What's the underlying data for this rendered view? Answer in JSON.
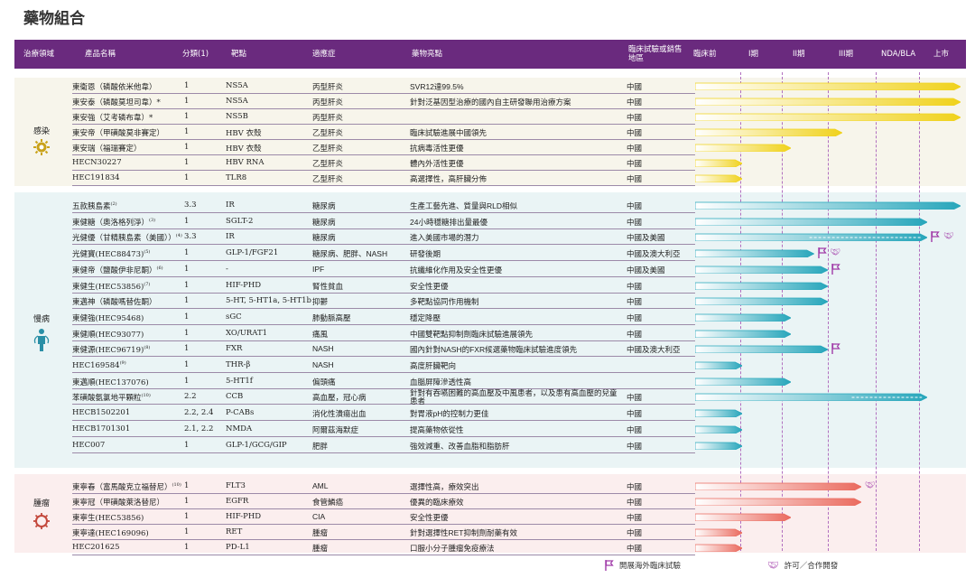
{
  "page_title": "藥物組合",
  "header": {
    "area": "治療領域",
    "product": "產品名稱",
    "category": "分類(1)",
    "target": "靶點",
    "indication": "適應症",
    "highlights": "藥物亮點",
    "region": "臨床試驗或銷售地區",
    "stages": [
      "臨床前",
      "I期",
      "II期",
      "III期",
      "NDA/BLA",
      "上市"
    ]
  },
  "colors": {
    "header_bg": "#6a2a7e",
    "infect_bar": "#f0d21c",
    "chronic_bar": "#27a6bb",
    "onco_bar": "#ea6a5e",
    "accent": "#a03aa8"
  },
  "areas": [
    {
      "name": "感染",
      "icon": "virus-icon"
    },
    {
      "name": "慢病",
      "icon": "body-icon"
    },
    {
      "name": "腫瘤",
      "icon": "tumor-icon"
    }
  ],
  "groups": [
    {
      "area": "infect",
      "rows": [
        {
          "product": "東衛恩（磷酸依米他韋）",
          "category": "1",
          "target": "NS5A",
          "indication": "丙型肝炎",
          "highlight": "SVR12達99.5%",
          "region": "中國",
          "progress": 6,
          "dashed": 0
        },
        {
          "product": "東安泰（磷酸莫坦司韋）*",
          "category": "1",
          "target": "NS5A",
          "indication": "丙型肝炎",
          "highlight": "針對泛基因型治療的國內自主研發聯用治療方案",
          "region": "中國",
          "progress": 6,
          "dashed": 0
        },
        {
          "product": "東安強（艾考磷布韋）*",
          "category": "1",
          "target": "NS5B",
          "indication": "丙型肝炎",
          "highlight": "",
          "region": "中國",
          "progress": 6,
          "dashed": 0
        },
        {
          "product": "東安帝（甲磺酸莫非賽定）",
          "category": "1",
          "target": "HBV 衣殼",
          "indication": "乙型肝炎",
          "highlight": "臨床試驗進展中國領先",
          "region": "中國",
          "progress": 3.3,
          "dashed": 0
        },
        {
          "product": "東安瑞（福瑞賽定）",
          "category": "1",
          "target": "HBV 衣殼",
          "indication": "乙型肝炎",
          "highlight": "抗病毒活性更優",
          "region": "中國",
          "progress": 2.2,
          "dashed": 0
        },
        {
          "product": "HECN30227",
          "category": "1",
          "target": "HBV RNA",
          "indication": "乙型肝炎",
          "highlight": "體內外活性更優",
          "region": "中國",
          "progress": 1.05,
          "dashed": 0
        },
        {
          "product": "HEC191834",
          "category": "1",
          "target": "TLR8",
          "indication": "乙型肝炎",
          "highlight": "高選擇性，高肝臟分佈",
          "region": "中國",
          "progress": 1.05,
          "dashed": 0
        }
      ]
    },
    {
      "area": "chronic",
      "rows": [
        {
          "product": "五款胰島素",
          "sup": "(2)",
          "category": "3.3",
          "target": "IR",
          "indication": "糖尿病",
          "highlight": "生產工藝先進、質量與RLD相似",
          "region": "中國",
          "progress": 6,
          "dashed": 0
        },
        {
          "product": "東健糖（奧洛格列淨）",
          "sup": "(3)",
          "category": "1",
          "target": "SGLT-2",
          "indication": "糖尿病",
          "highlight": "24小時穩糖排出量最優",
          "region": "中國",
          "progress": 5.2,
          "dashed": 0
        },
        {
          "product": "光健優（甘精胰島素（美國））",
          "sup": "(4)",
          "category": "3.3",
          "target": "IR",
          "indication": "糖尿病",
          "highlight": "進入美國市場的潛力",
          "region": "中國及美國",
          "progress": 5.2,
          "dashed": 2.6
        },
        {
          "product": "光健寶(HEC88473)",
          "sup": "(5)",
          "category": "1",
          "target": "GLP-1/FGF21",
          "indication": "糖尿病、肥胖、NASH",
          "highlight": "研發後期",
          "region": "中國及澳大利亞",
          "progress": 2.7,
          "dashed": 0
        },
        {
          "product": "東健帝（鹽酸伊非尼酮）",
          "sup": "(6)",
          "category": "1",
          "target": "-",
          "indication": "IPF",
          "highlight": "抗纖維化作用及安全性更優",
          "region": "中國及美國",
          "progress": 3.0,
          "dashed": 0
        },
        {
          "product": "東健生(HEC53856)",
          "sup": "(7)",
          "category": "1",
          "target": "HIF-PHD",
          "indication": "腎性貧血",
          "highlight": "安全性更優",
          "region": "中國",
          "progress": 3.0,
          "dashed": 0
        },
        {
          "product": "東邁神（磷酸嗎替佐酮）",
          "category": "1",
          "target": "5-HT, 5-HT1a, 5-HT1b",
          "indication": "抑鬱",
          "highlight": "多靶點協同作用機制",
          "region": "中國",
          "progress": 3.0,
          "dashed": 0
        },
        {
          "product": "東健強(HEC95468)",
          "category": "1",
          "target": "sGC",
          "indication": "肺動脈高壓",
          "highlight": "穩定降壓",
          "region": "中國",
          "progress": 2.2,
          "dashed": 0
        },
        {
          "product": "東健順(HEC93077)",
          "category": "1",
          "target": "XO/URAT1",
          "indication": "痛風",
          "highlight": "中國雙靶點抑制劑臨床試驗進展領先",
          "region": "中國",
          "progress": 2.2,
          "dashed": 0
        },
        {
          "product": "東健源(HEC96719)",
          "sup": "(8)",
          "category": "1",
          "target": "FXR",
          "indication": "NASH",
          "highlight": "國內針對NASH的FXR候選藥物臨床試驗進度領先",
          "region": "中國及澳大利亞",
          "progress": 3.0,
          "dashed": 0
        },
        {
          "product": "HEC169584",
          "sup": "(9)",
          "category": "1",
          "target": "THR-β",
          "indication": "NASH",
          "highlight": "高度肝臟靶向",
          "region": "",
          "progress": 1.05,
          "dashed": 0
        },
        {
          "product": "東邁順(HEC137076)",
          "category": "1",
          "target": "5-HT1f",
          "indication": "偏頭痛",
          "highlight": "血腦屏障滲透性高",
          "region": "",
          "progress": 2.2,
          "dashed": 0
        },
        {
          "product": "苯磺酸氨氯地平顆粒",
          "sup": "(10)",
          "category": "2.2",
          "target": "CCB",
          "indication": "高血壓，冠心病",
          "highlight": "針對有吞嚥困難的高血壓及中風患者，以及患有高血壓的兒童患者",
          "region": "中國",
          "progress": 5.2,
          "dashed": 3.5
        },
        {
          "product": "HECB1502201",
          "category": "2.2, 2.4",
          "target": "P-CABs",
          "indication": "消化性潰瘍出血",
          "highlight": "對胃液pH的控制力更佳",
          "region": "中國",
          "progress": 1.05,
          "dashed": 0
        },
        {
          "product": "HECB1701301",
          "category": "2.1, 2.2",
          "target": "NMDA",
          "indication": "阿爾茲海默症",
          "highlight": "提高藥物依從性",
          "region": "中國",
          "progress": 1.05,
          "dashed": 0
        },
        {
          "product": "HEC007",
          "category": "1",
          "target": "GLP-1/GCG/GIP",
          "indication": "肥胖",
          "highlight": "強效減重、改善血脂和脂肪肝",
          "region": "中國",
          "progress": 1.05,
          "dashed": 0
        }
      ]
    },
    {
      "area": "onco",
      "rows": [
        {
          "product": "東寧春（富馬酸克立福替尼）",
          "sup": "(10)",
          "category": "1",
          "target": "FLT3",
          "indication": "AML",
          "highlight": "選擇性高，療效突出",
          "region": "中國",
          "progress": 3.7,
          "dashed": 0
        },
        {
          "product": "東寧冠（甲磺酸萊洛替尼）",
          "category": "1",
          "target": "EGFR",
          "indication": "食管鱗癌",
          "highlight": "優異的臨床療效",
          "region": "中國",
          "progress": 3.7,
          "dashed": 0
        },
        {
          "product": "東寧生(HEC53856)",
          "category": "1",
          "target": "HIF-PHD",
          "indication": "CIA",
          "highlight": "安全性更優",
          "region": "中國",
          "progress": 2.2,
          "dashed": 0
        },
        {
          "product": "東寧達(HEC169096)",
          "category": "1",
          "target": "RET",
          "indication": "腫瘤",
          "highlight": "針對選擇性RET抑制劑耐藥有效",
          "region": "中國",
          "progress": 1.05,
          "dashed": 0
        },
        {
          "product": "HEC201625",
          "category": "1",
          "target": "PD-L1",
          "indication": "腫瘤",
          "highlight": "口服小分子腫瘤免疫療法",
          "region": "中國",
          "progress": 1.05,
          "dashed": 0
        }
      ]
    }
  ],
  "marks": {
    "flags": [
      "光健優（甘精胰島素（美國））",
      "光健寶(HEC88473)",
      "東健帝（鹽酸伊非尼酮）",
      "東健源(HEC96719)"
    ],
    "handshakes": [
      "光健優（甘精胰島素（美國））",
      "光健寶(HEC88473)",
      "東寧春（富馬酸克立福替尼）"
    ]
  },
  "legend": {
    "flag_label": "開展海外臨床試驗",
    "handshake_label": "許可／合作開發"
  }
}
